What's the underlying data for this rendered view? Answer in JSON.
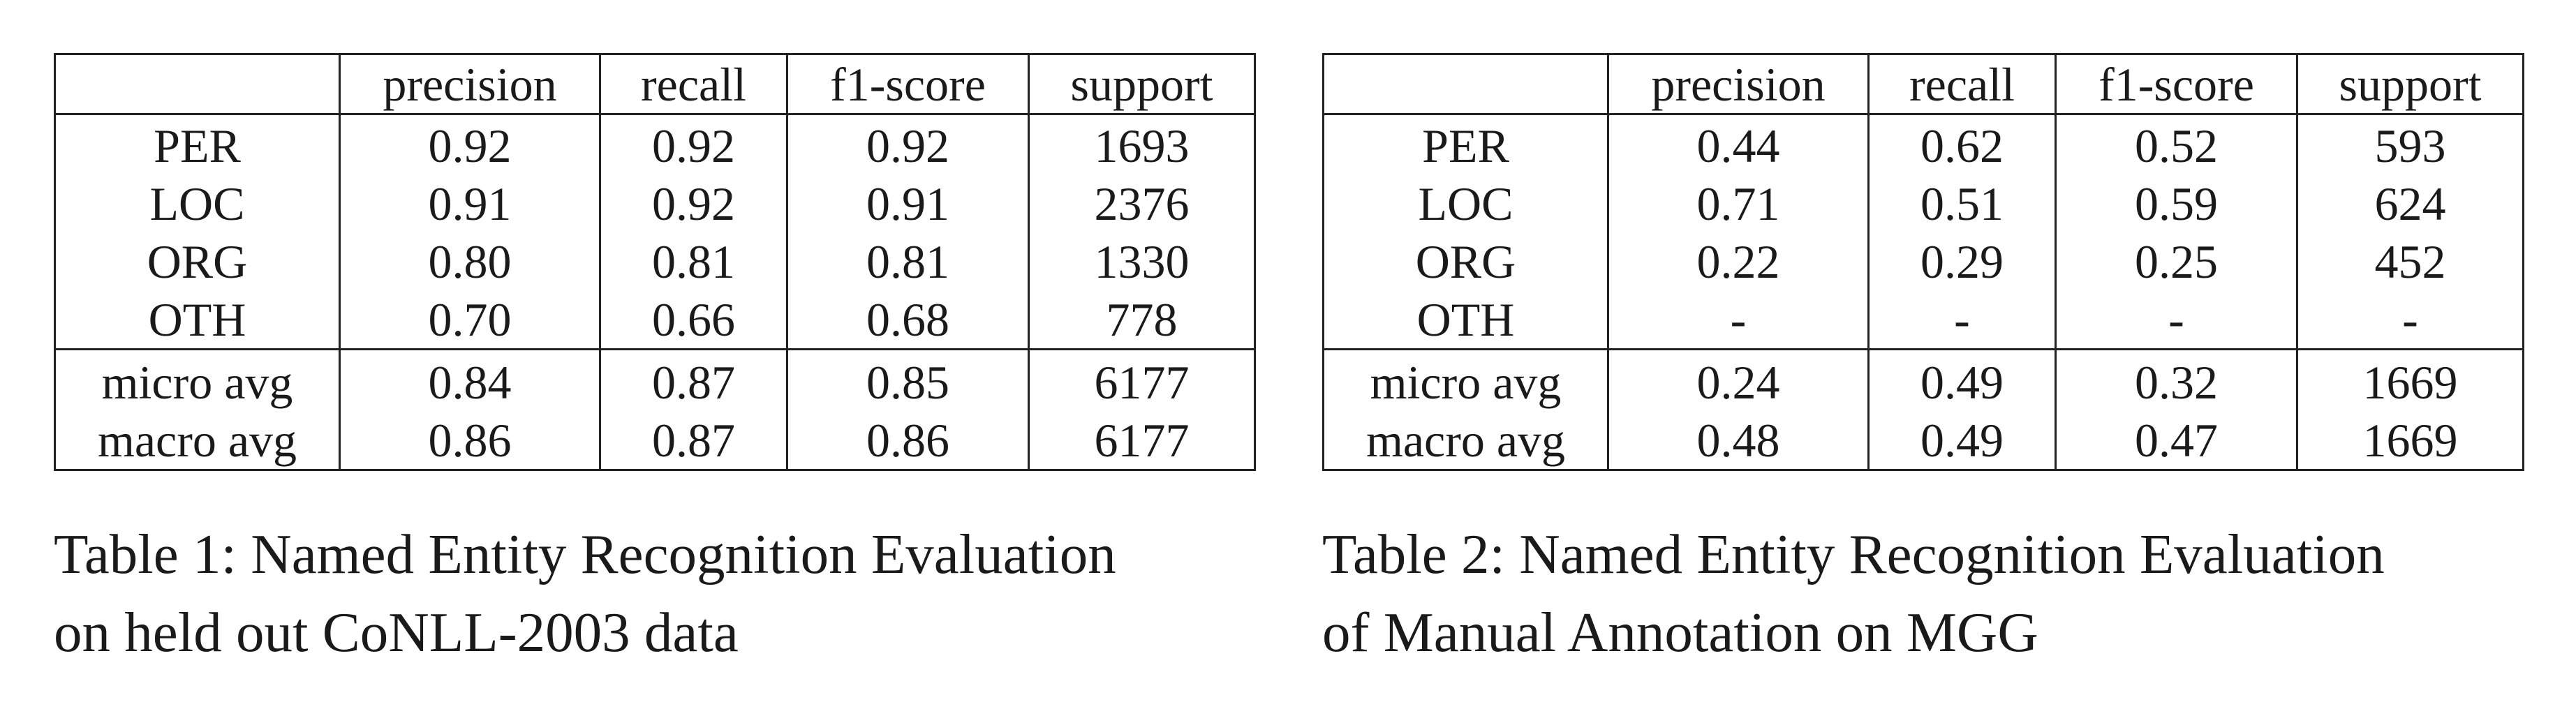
{
  "tables": [
    {
      "headers": [
        "",
        "precision",
        "recall",
        "f1-score",
        "support"
      ],
      "entity_rows": [
        {
          "label": "PER",
          "precision": "0.92",
          "recall": "0.92",
          "f1": "0.92",
          "support": "1693"
        },
        {
          "label": "LOC",
          "precision": "0.91",
          "recall": "0.92",
          "f1": "0.91",
          "support": "2376"
        },
        {
          "label": "ORG",
          "precision": "0.80",
          "recall": "0.81",
          "f1": "0.81",
          "support": "1330"
        },
        {
          "label": "OTH",
          "precision": "0.70",
          "recall": "0.66",
          "f1": "0.68",
          "support": "778"
        }
      ],
      "average_rows": [
        {
          "label": "micro avg",
          "precision": "0.84",
          "recall": "0.87",
          "f1": "0.85",
          "support": "6177"
        },
        {
          "label": "macro avg",
          "precision": "0.86",
          "recall": "0.87",
          "f1": "0.86",
          "support": "6177"
        }
      ],
      "caption_line1": "Table 1: Named Entity Recognition Evaluation",
      "caption_line2": "on held out CoNLL-2003 data"
    },
    {
      "headers": [
        "",
        "precision",
        "recall",
        "f1-score",
        "support"
      ],
      "entity_rows": [
        {
          "label": "PER",
          "precision": "0.44",
          "recall": "0.62",
          "f1": "0.52",
          "support": "593"
        },
        {
          "label": "LOC",
          "precision": "0.71",
          "recall": "0.51",
          "f1": "0.59",
          "support": "624"
        },
        {
          "label": "ORG",
          "precision": "0.22",
          "recall": "0.29",
          "f1": "0.25",
          "support": "452"
        },
        {
          "label": "OTH",
          "precision": "-",
          "recall": "-",
          "f1": "-",
          "support": "-"
        }
      ],
      "average_rows": [
        {
          "label": "micro avg",
          "precision": "0.24",
          "recall": "0.49",
          "f1": "0.32",
          "support": "1669"
        },
        {
          "label": "macro avg",
          "precision": "0.48",
          "recall": "0.49",
          "f1": "0.47",
          "support": "1669"
        }
      ],
      "caption_line1": "Table 2: Named Entity Recognition Evaluation",
      "caption_line2": "of Manual Annotation on MGG"
    }
  ]
}
